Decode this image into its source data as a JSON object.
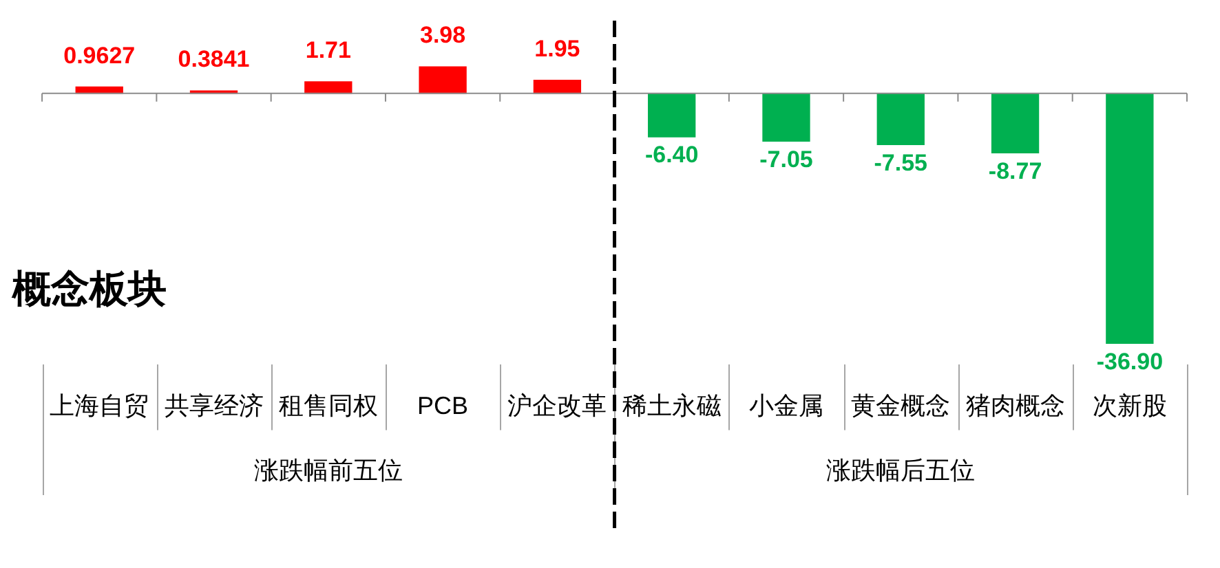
{
  "chart_data": {
    "type": "bar",
    "title": "概念板块",
    "categories": [
      "上海自贸",
      "共享经济",
      "租售同权",
      "PCB",
      "沪企改革",
      "稀土永磁",
      "小金属",
      "黄金概念",
      "猪肉概念",
      "次新股"
    ],
    "values": [
      0.9627,
      0.3841,
      1.71,
      3.98,
      1.95,
      -6.4,
      -7.05,
      -7.55,
      -8.77,
      -36.9
    ],
    "colors": [
      "#ff0000",
      "#ff0000",
      "#ff0000",
      "#ff0000",
      "#ff0000",
      "#00b050",
      "#00b050",
      "#00b050",
      "#00b050",
      "#00b050"
    ],
    "value_labels": [
      "0.9627",
      "0.3841",
      "1.71",
      "3.98",
      "1.95",
      "-6.40",
      "-7.05",
      "-7.55",
      "-8.77",
      "-36.90"
    ],
    "annotations": [
      "涨跌幅前五位",
      "涨跌幅后五位"
    ],
    "tick_labels": "x"
  }
}
